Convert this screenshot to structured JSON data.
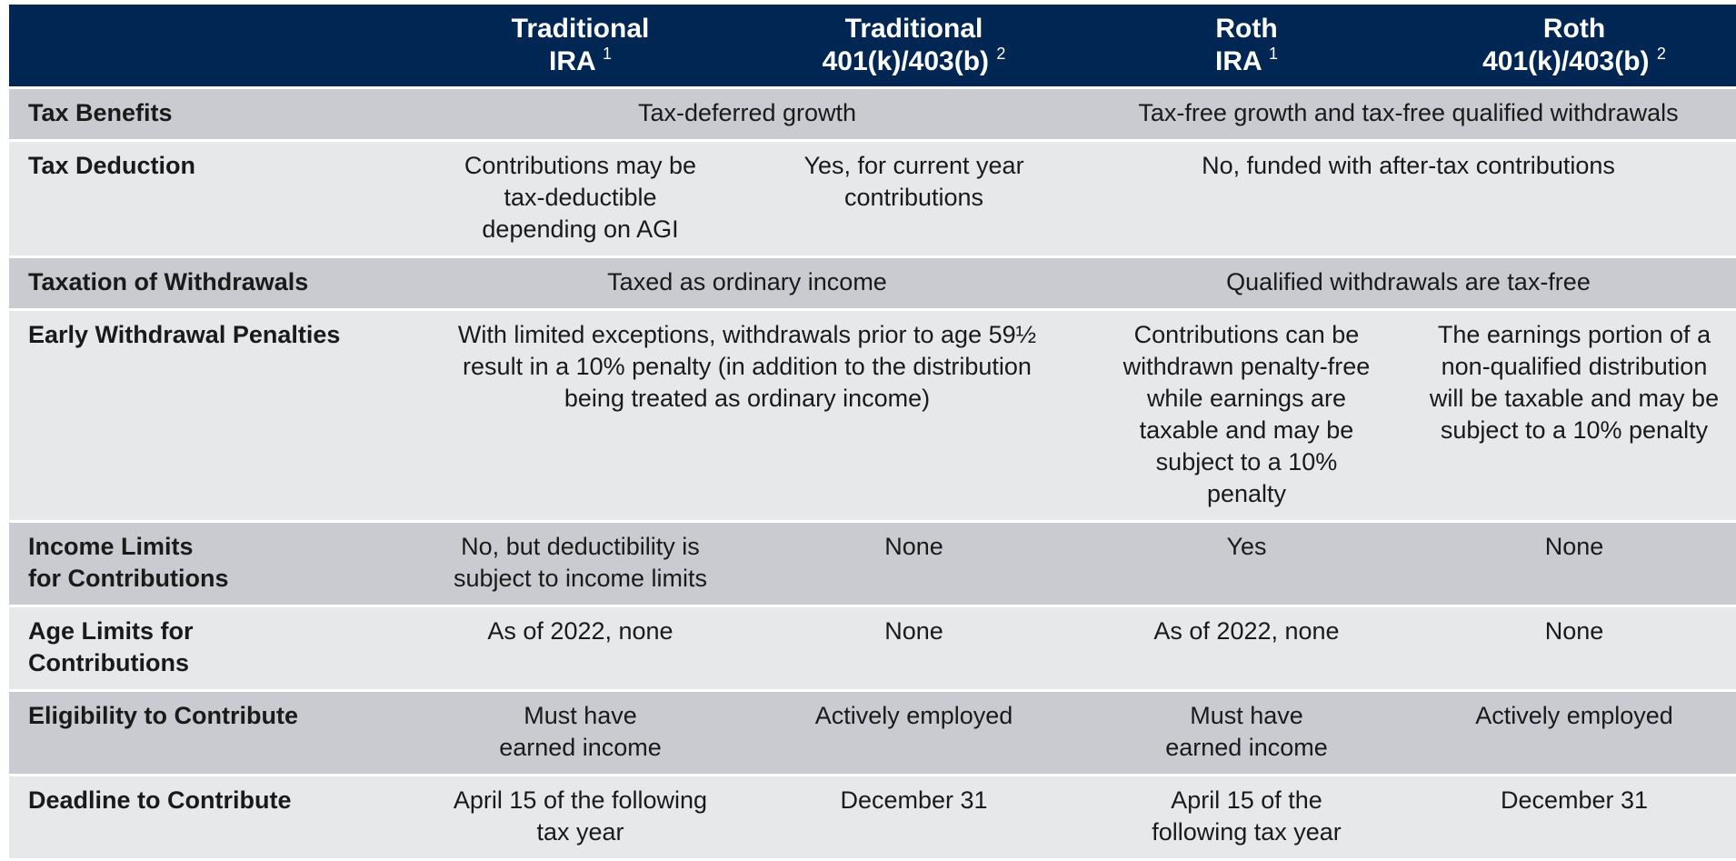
{
  "header": {
    "columns": [
      {
        "line1": "Traditional",
        "line2": "IRA",
        "note": "1"
      },
      {
        "line1": "Traditional",
        "line2": "401(k)/403(b)",
        "note": "2"
      },
      {
        "line1": "Roth",
        "line2": "IRA",
        "note": "1"
      },
      {
        "line1": "Roth",
        "line2": "401(k)/403(b)",
        "note": "2"
      }
    ]
  },
  "rows": {
    "tax_benefits": {
      "label": "Tax Benefits",
      "traditional": "Tax-deferred growth",
      "roth": "Tax-free growth and tax-free qualified withdrawals"
    },
    "tax_deduction": {
      "label": "Tax Deduction",
      "trad_ira": "Contributions may be tax-deductible depending on AGI",
      "trad_401k": "Yes, for current year contributions",
      "roth": "No, funded with after-tax contributions"
    },
    "taxation_withdrawals": {
      "label": "Taxation of Withdrawals",
      "traditional": "Taxed as ordinary income",
      "roth": "Qualified withdrawals are tax-free"
    },
    "early_withdrawal": {
      "label": "Early Withdrawal Penalties",
      "traditional": "With limited exceptions, withdrawals prior to age 59½ result in a 10% penalty (in addition to the distribution being treated as ordinary income)",
      "roth_ira": "Contributions can be withdrawn penalty-free while earnings are taxable and may be subject to a 10% penalty",
      "roth_401k": "The earnings portion of a non-qualified distribution will be taxable and may be subject to a 10% penalty"
    },
    "income_limits": {
      "label": "Income Limits for Contributions",
      "trad_ira": "No, but deductibility is subject to income limits",
      "trad_401k": "None",
      "roth_ira": "Yes",
      "roth_401k": "None"
    },
    "age_limits": {
      "label": "Age Limits for Contributions",
      "trad_ira": "As of 2022, none",
      "trad_401k": "None",
      "roth_ira": "As of 2022, none",
      "roth_401k": "None"
    },
    "eligibility": {
      "label": "Eligibility to Contribute",
      "trad_ira": "Must have earned income",
      "trad_401k": "Actively employed",
      "roth_ira": "Must have earned income",
      "roth_401k": "Actively employed"
    },
    "deadline": {
      "label": "Deadline to Contribute",
      "trad_ira": "April 15 of the following tax year",
      "trad_401k": "December 31",
      "roth_ira": "April 15 of the following tax year",
      "roth_401k": "December 31"
    }
  },
  "colors": {
    "header_bg": "#002754",
    "header_text": "#ffffff",
    "row_shaded": "#c9cbd0",
    "row_light": "#e7e8ea",
    "text": "#1a1a1a"
  }
}
